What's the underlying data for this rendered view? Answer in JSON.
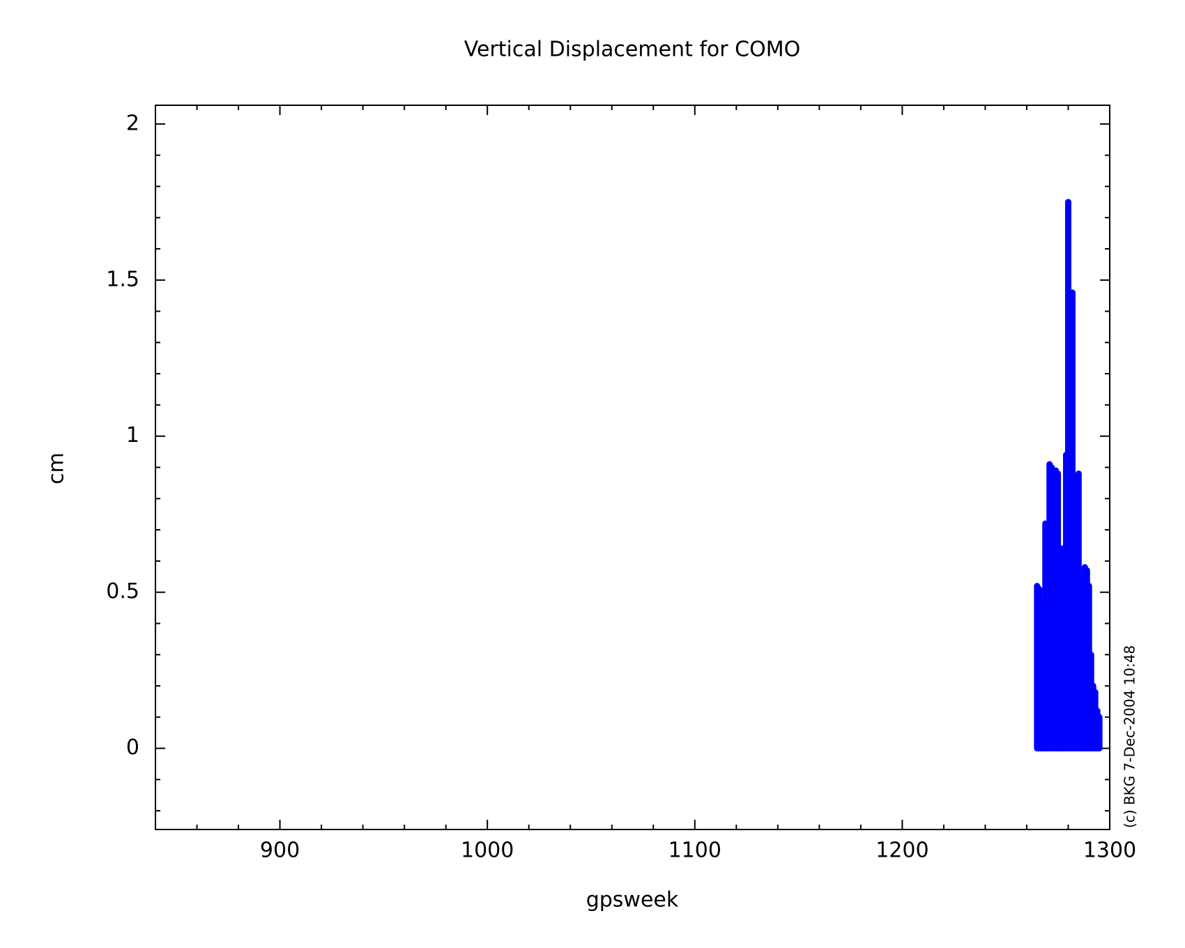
{
  "chart_data": {
    "type": "impulse",
    "title": "Vertical Displacement for COMO",
    "xlabel": "gpsweek",
    "ylabel": "cm",
    "annotation": "(c) BKG 7-Dec-2004 10:48",
    "color": "#0000ff",
    "x": [
      1265,
      1266,
      1267,
      1268,
      1269,
      1270,
      1271,
      1272,
      1273,
      1274,
      1275,
      1276,
      1277,
      1278,
      1279,
      1280,
      1281,
      1282,
      1283,
      1284,
      1285,
      1286,
      1287,
      1288,
      1289,
      1290,
      1291,
      1292,
      1293,
      1294,
      1295
    ],
    "values": [
      0.52,
      0.51,
      0.48,
      0.3,
      0.72,
      0.7,
      0.91,
      0.9,
      0.6,
      0.89,
      0.88,
      0.5,
      0.64,
      0.6,
      0.94,
      1.75,
      1.2,
      1.46,
      0.85,
      0.87,
      0.88,
      0.55,
      0.45,
      0.58,
      0.57,
      0.52,
      0.3,
      0.2,
      0.18,
      0.12,
      0.1
    ],
    "xlim": [
      840,
      1300
    ],
    "ylim": [
      -0.26,
      2.06
    ],
    "xticks": [
      900,
      1000,
      1100,
      1200,
      1300
    ],
    "yticks": [
      0,
      0.5,
      1,
      1.5,
      2
    ],
    "xminorticks": [
      860,
      880,
      920,
      940,
      960,
      980,
      1020,
      1040,
      1060,
      1080,
      1120,
      1140,
      1160,
      1180,
      1220,
      1240,
      1260,
      1280
    ],
    "yminorticks": [
      -0.2,
      -0.1,
      0.1,
      0.2,
      0.3,
      0.4,
      0.6,
      0.7,
      0.8,
      0.9,
      1.1,
      1.2,
      1.3,
      1.4,
      1.6,
      1.7,
      1.8,
      1.9
    ]
  }
}
